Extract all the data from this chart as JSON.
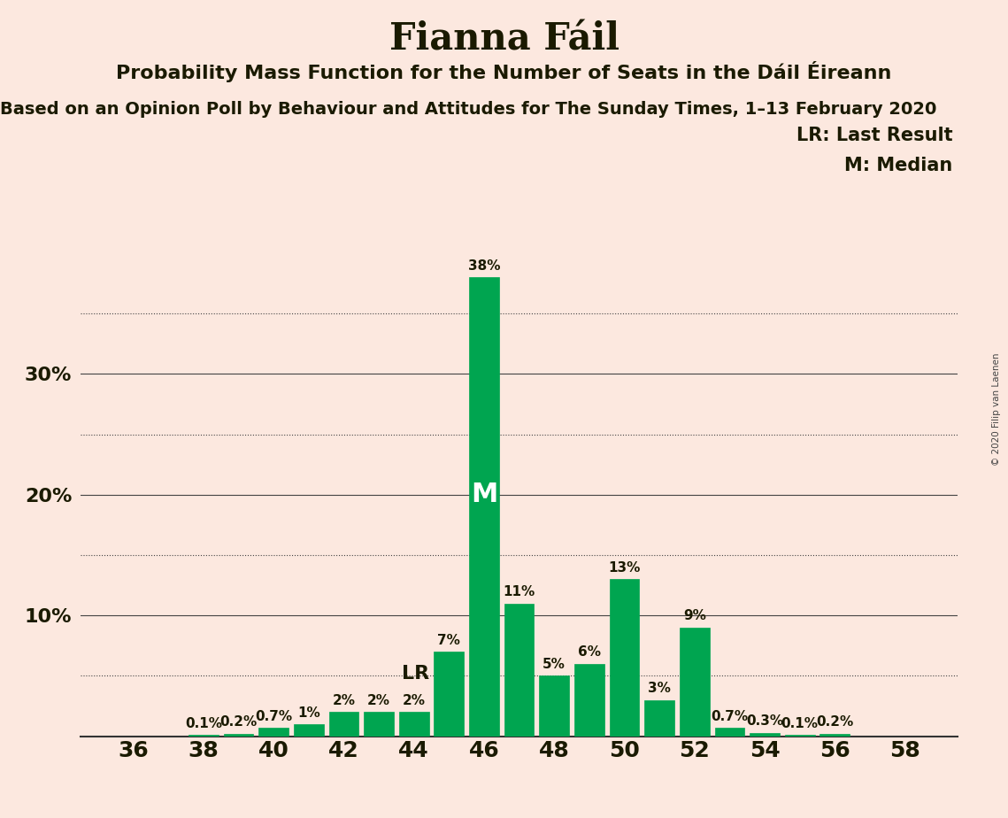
{
  "title": "Fianna Fáil",
  "subtitle": "Probability Mass Function for the Number of Seats in the Dáil Éireann",
  "sub2": "Based on an Opinion Poll by Behaviour and Attitudes for The Sunday Times, 1–13 February 2020",
  "copyright": "© 2020 Filip van Laenen",
  "legend_lr": "LR: Last Result",
  "legend_m": "M: Median",
  "background_color": "#fce8df",
  "bar_color": "#00a550",
  "seats": [
    36,
    37,
    38,
    39,
    40,
    41,
    42,
    43,
    44,
    45,
    46,
    47,
    48,
    49,
    50,
    51,
    52,
    53,
    54,
    55,
    56,
    57,
    58
  ],
  "probabilities": [
    0.0,
    0.0,
    0.1,
    0.2,
    0.7,
    1.0,
    2.0,
    2.0,
    2.0,
    7.0,
    38.0,
    11.0,
    5.0,
    6.0,
    13.0,
    3.0,
    9.0,
    0.7,
    0.3,
    0.1,
    0.2,
    0.0,
    0.0
  ],
  "median_seat": 46,
  "last_result_seat": 45,
  "ylim": [
    0,
    42
  ],
  "major_yticks": [
    10,
    20,
    30
  ],
  "dotted_yticks": [
    5,
    15,
    25,
    35
  ],
  "title_fontsize": 30,
  "subtitle_fontsize": 16,
  "sub2_fontsize": 14,
  "bar_label_fontsize": 11,
  "ytick_fontsize": 16,
  "xtick_fontsize": 18,
  "legend_fontsize": 15,
  "annotation_fontsize": 16
}
